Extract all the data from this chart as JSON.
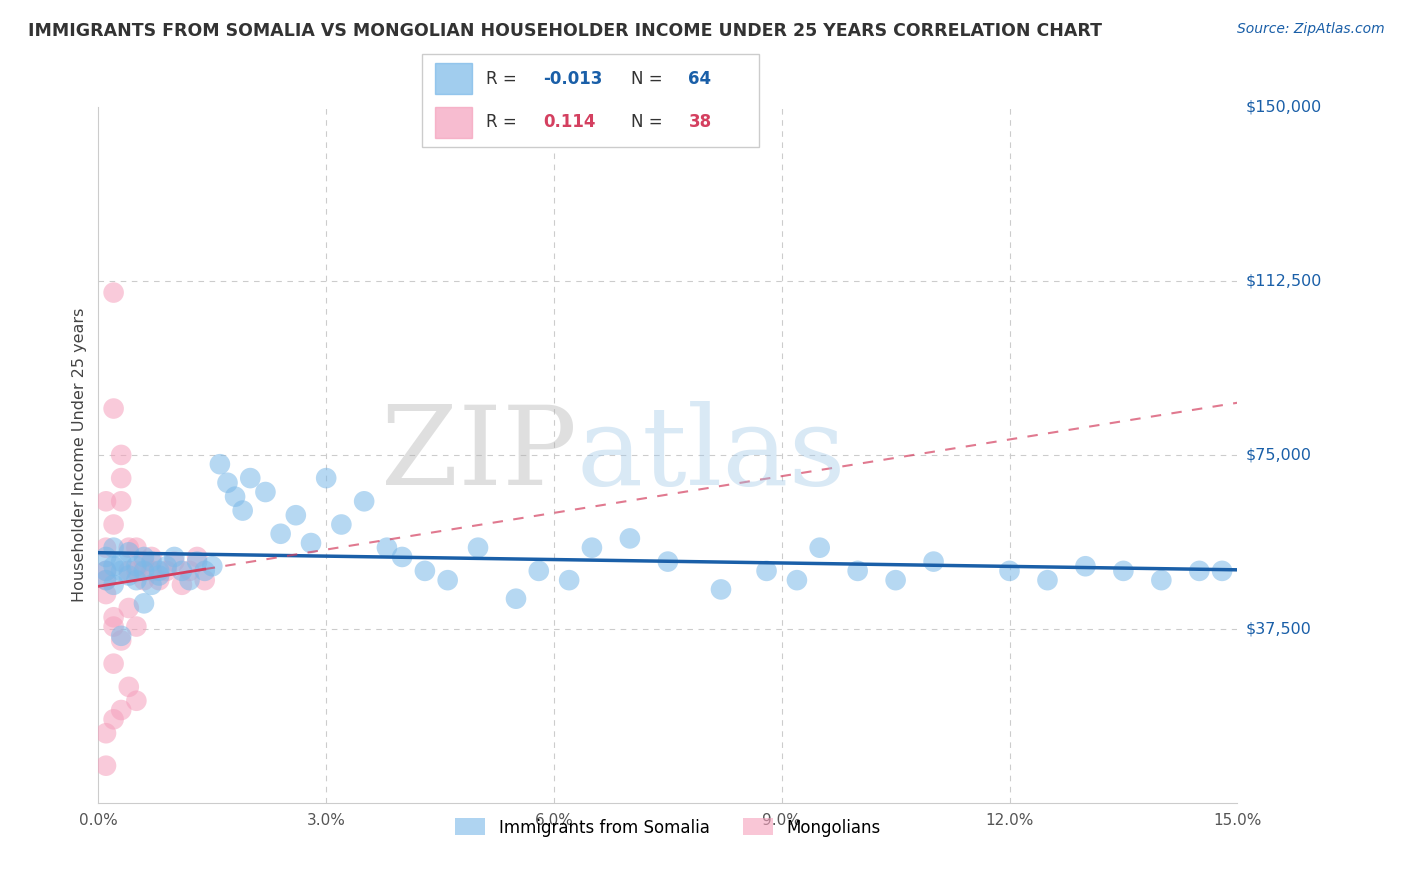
{
  "title": "IMMIGRANTS FROM SOMALIA VS MONGOLIAN HOUSEHOLDER INCOME UNDER 25 YEARS CORRELATION CHART",
  "source_text": "Source: ZipAtlas.com",
  "ylabel": "Householder Income Under 25 years",
  "xlim": [
    0.0,
    0.15
  ],
  "ylim": [
    0,
    150000
  ],
  "yticks": [
    0,
    37500,
    75000,
    112500,
    150000
  ],
  "ytick_labels": [
    "",
    "$37,500",
    "$75,000",
    "$112,500",
    "$150,000"
  ],
  "xticks": [
    0.0,
    0.03,
    0.06,
    0.09,
    0.12,
    0.15
  ],
  "xtick_labels": [
    "0.0%",
    "3.0%",
    "6.0%",
    "9.0%",
    "12.0%",
    "15.0%"
  ],
  "watermark_zip": "ZIP",
  "watermark_atlas": "atlas",
  "blue_color": "#7ab8e8",
  "pink_color": "#f5a0bc",
  "trendline_blue": "#1a5fa8",
  "trendline_pink": "#d44060",
  "grid_color": "#cccccc",
  "legend_blue_r": "R = ",
  "legend_blue_rv": "-0.013",
  "legend_blue_n": "N = 64",
  "legend_pink_r": "R =  ",
  "legend_pink_rv": "0.114",
  "legend_pink_n": "N = 38",
  "somalia_x": [
    0.001,
    0.001,
    0.001,
    0.002,
    0.002,
    0.002,
    0.003,
    0.003,
    0.004,
    0.004,
    0.005,
    0.005,
    0.006,
    0.006,
    0.007,
    0.007,
    0.008,
    0.008,
    0.009,
    0.01,
    0.011,
    0.012,
    0.013,
    0.014,
    0.015,
    0.016,
    0.017,
    0.018,
    0.019,
    0.02,
    0.022,
    0.024,
    0.026,
    0.028,
    0.03,
    0.032,
    0.035,
    0.038,
    0.04,
    0.043,
    0.046,
    0.05,
    0.055,
    0.058,
    0.062,
    0.065,
    0.07,
    0.075,
    0.082,
    0.088,
    0.092,
    0.095,
    0.1,
    0.105,
    0.11,
    0.12,
    0.125,
    0.13,
    0.135,
    0.14,
    0.145,
    0.148,
    0.003,
    0.006
  ],
  "somalia_y": [
    50000,
    53000,
    48000,
    51000,
    47000,
    55000,
    52000,
    50000,
    49000,
    54000,
    51000,
    48000,
    50000,
    53000,
    52000,
    47000,
    50000,
    49000,
    51000,
    53000,
    50000,
    48000,
    52000,
    50000,
    51000,
    73000,
    69000,
    66000,
    63000,
    70000,
    67000,
    58000,
    62000,
    56000,
    70000,
    60000,
    65000,
    55000,
    53000,
    50000,
    48000,
    55000,
    44000,
    50000,
    48000,
    55000,
    57000,
    52000,
    46000,
    50000,
    48000,
    55000,
    50000,
    48000,
    52000,
    50000,
    48000,
    51000,
    50000,
    48000,
    50000,
    50000,
    36000,
    43000
  ],
  "mongolia_x": [
    0.001,
    0.001,
    0.001,
    0.002,
    0.002,
    0.003,
    0.003,
    0.003,
    0.004,
    0.004,
    0.005,
    0.005,
    0.006,
    0.006,
    0.007,
    0.007,
    0.008,
    0.009,
    0.01,
    0.011,
    0.012,
    0.013,
    0.014,
    0.002,
    0.003,
    0.004,
    0.005,
    0.002,
    0.001,
    0.001,
    0.002,
    0.003,
    0.004,
    0.005,
    0.001,
    0.002,
    0.001,
    0.002
  ],
  "mongolia_y": [
    50000,
    48000,
    45000,
    110000,
    85000,
    65000,
    70000,
    75000,
    50000,
    55000,
    55000,
    50000,
    48000,
    52000,
    50000,
    53000,
    48000,
    50000,
    52000,
    47000,
    50000,
    53000,
    48000,
    38000,
    35000,
    42000,
    38000,
    30000,
    8000,
    15000,
    18000,
    20000,
    25000,
    22000,
    55000,
    60000,
    65000,
    40000
  ]
}
